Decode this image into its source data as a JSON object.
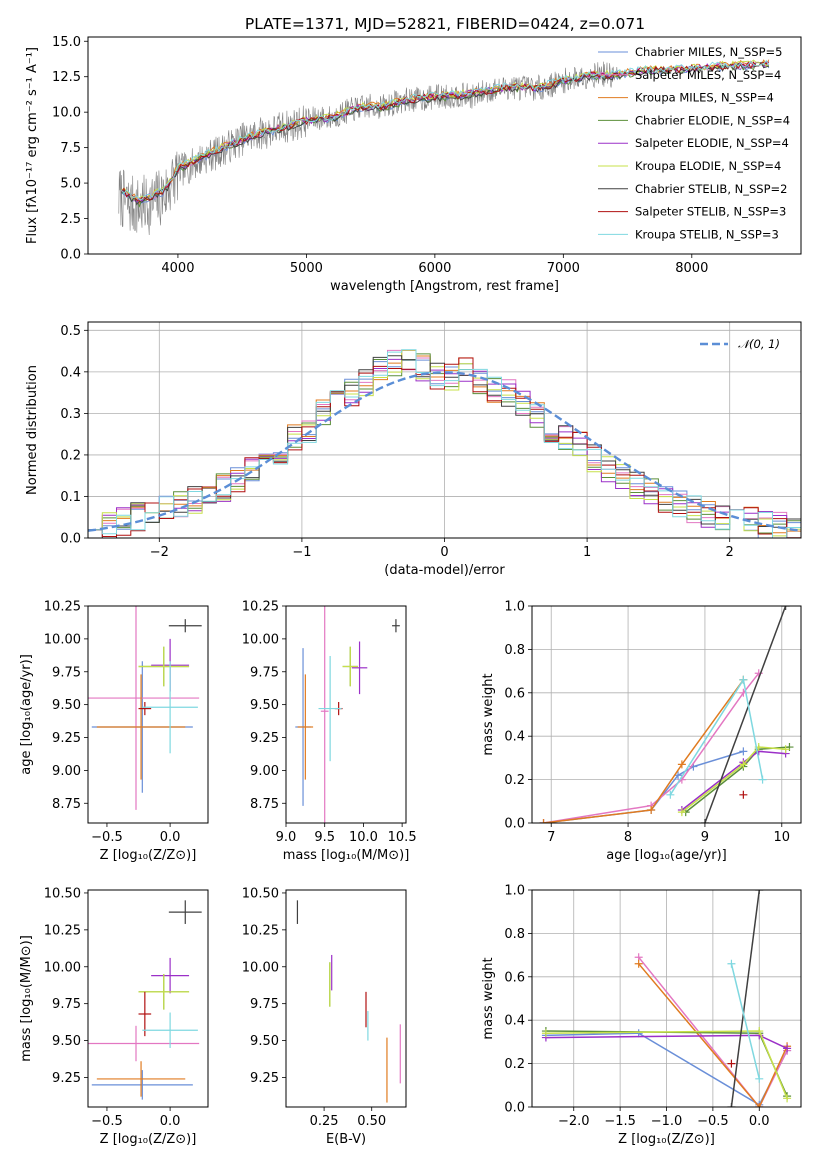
{
  "figure": {
    "title": "PLATE=1371, MJD=52821, FIBERID=0424, z=0.071"
  },
  "chart_data": [
    {
      "id": "spectrum",
      "type": "line",
      "xlabel": "wavelength [Angstrom, rest frame]",
      "ylabel": "Flux [fλ10⁻¹⁷ erg cm⁻² s⁻¹ A⁻¹]",
      "xlim": [
        3300,
        8850
      ],
      "ylim": [
        0,
        15.3
      ],
      "xticks": [
        "4000",
        "5000",
        "6000",
        "7000",
        "8000"
      ],
      "yticks": [
        "0.0",
        "2.5",
        "5.0",
        "7.5",
        "10.0",
        "12.5",
        "15.0"
      ],
      "data": {
        "color": "#808080",
        "wavelength": [
          3560,
          3600,
          3700,
          3800,
          3900,
          4000,
          4100,
          4200,
          4300,
          4400,
          4500,
          4600,
          4700,
          4800,
          4900,
          5000,
          5100,
          5200,
          5300,
          5400,
          5500,
          5600,
          5700,
          5800,
          5900,
          6000,
          6100,
          6200,
          6300,
          6400,
          6500,
          6600,
          6700,
          6800,
          6900,
          7000,
          7100,
          7200,
          7300,
          7400
        ],
        "flux": [
          4.0,
          3.5,
          3.3,
          3.6,
          4.2,
          5.8,
          6.2,
          6.8,
          7.1,
          7.6,
          8.1,
          8.4,
          8.6,
          8.9,
          9.1,
          9.4,
          9.6,
          9.6,
          10.0,
          10.3,
          10.4,
          10.4,
          10.7,
          10.9,
          10.9,
          11.1,
          11.1,
          11.2,
          11.1,
          11.5,
          11.6,
          11.8,
          11.7,
          11.7,
          11.9,
          12.2,
          12.4,
          12.6,
          12.7,
          12.5
        ]
      },
      "model_wavelength": [
        3560,
        3700,
        3900,
        4000,
        4200,
        4400,
        4600,
        4800,
        5000,
        5200,
        5400,
        5600,
        5800,
        6000,
        6200,
        6400,
        6600,
        6800,
        7000,
        7200,
        7400,
        7600,
        7800,
        8000,
        8200,
        8400,
        8600
      ],
      "model_flux": [
        4.5,
        3.7,
        4.5,
        6.0,
        6.9,
        7.7,
        8.4,
        8.9,
        9.4,
        9.6,
        10.3,
        10.4,
        10.9,
        11.1,
        11.2,
        11.5,
        11.8,
        11.7,
        12.2,
        12.6,
        12.6,
        12.9,
        13.0,
        13.1,
        13.2,
        13.3,
        13.4
      ],
      "series": [
        {
          "name": "Chabrier MILES, N_SSP=5",
          "color": "#6a8fd8"
        },
        {
          "name": "Salpeter MILES, N_SSP=4",
          "color": "#e377c2"
        },
        {
          "name": "Kroupa MILES, N_SSP=4",
          "color": "#e07b20"
        },
        {
          "name": "Chabrier ELODIE, N_SSP=4",
          "color": "#5b8f3a"
        },
        {
          "name": "Salpeter ELODIE, N_SSP=4",
          "color": "#9b30c8"
        },
        {
          "name": "Kroupa ELODIE, N_SSP=4",
          "color": "#c7e04a"
        },
        {
          "name": "Chabrier STELIB, N_SSP=2",
          "color": "#404040"
        },
        {
          "name": "Salpeter STELIB, N_SSP=3",
          "color": "#b01010"
        },
        {
          "name": "Kroupa STELIB, N_SSP=3",
          "color": "#7fd8e0"
        }
      ]
    },
    {
      "id": "residuals",
      "type": "line",
      "xlabel": "(data-model)/error",
      "ylabel": "Normed distribution",
      "xlim": [
        -2.5,
        2.5
      ],
      "ylim": [
        0,
        0.52
      ],
      "xticks": [
        "−2",
        "−1",
        "0",
        "1",
        "2"
      ],
      "yticks": [
        "0.0",
        "0.1",
        "0.2",
        "0.3",
        "0.4",
        "0.5"
      ],
      "gaussian_label": "𝒩(0, 1)",
      "gaussian_color": "#5b8ed6",
      "bin_centers": [
        -2.45,
        -2.35,
        -2.25,
        -2.15,
        -2.05,
        -1.95,
        -1.85,
        -1.75,
        -1.65,
        -1.55,
        -1.45,
        -1.35,
        -1.25,
        -1.15,
        -1.05,
        -0.95,
        -0.85,
        -0.75,
        -0.65,
        -0.55,
        -0.45,
        -0.35,
        -0.25,
        -0.15,
        -0.05,
        0.05,
        0.15,
        0.25,
        0.35,
        0.45,
        0.55,
        0.65,
        0.75,
        0.85,
        0.95,
        1.05,
        1.15,
        1.25,
        1.35,
        1.45,
        1.55,
        1.65,
        1.75,
        1.85,
        1.95,
        2.05,
        2.15,
        2.25,
        2.35,
        2.45
      ],
      "histogram": [
        0.03,
        0.03,
        0.04,
        0.05,
        0.05,
        0.07,
        0.08,
        0.09,
        0.11,
        0.12,
        0.14,
        0.16,
        0.19,
        0.21,
        0.24,
        0.26,
        0.3,
        0.32,
        0.35,
        0.37,
        0.4,
        0.42,
        0.43,
        0.41,
        0.39,
        0.39,
        0.4,
        0.38,
        0.36,
        0.35,
        0.32,
        0.3,
        0.26,
        0.24,
        0.22,
        0.19,
        0.17,
        0.15,
        0.13,
        0.11,
        0.09,
        0.08,
        0.07,
        0.06,
        0.05,
        0.04,
        0.04,
        0.03,
        0.03,
        0.02
      ]
    },
    {
      "id": "age-vs-Z",
      "type": "scatter",
      "xlabel": "Z [log₁₀(Z/Z⊙)]",
      "ylabel": "age  [log₁₀(age/yr)]",
      "xlim": [
        -0.65,
        0.3
      ],
      "ylim": [
        8.6,
        10.25
      ],
      "xticks": [
        "−0.5",
        "0.0"
      ],
      "yticks": [
        "8.75",
        "9.00",
        "9.25",
        "9.50",
        "9.75",
        "10.00",
        "10.25"
      ],
      "points": [
        {
          "x": -0.22,
          "y": 9.33,
          "xerr": 0.4,
          "yerr": 0.5,
          "color": "#6a8fd8"
        },
        {
          "x": -0.27,
          "y": 9.55,
          "xerr": 0.5,
          "yerr": 0.85,
          "color": "#e377c2"
        },
        {
          "x": -0.23,
          "y": 9.33,
          "xerr": 0.35,
          "yerr": 0.4,
          "color": "#e07b20"
        },
        {
          "x": -0.05,
          "y": 9.79,
          "xerr": 0.2,
          "yerr": 0.15,
          "color": "#5b8f3a"
        },
        {
          "x": 0.0,
          "y": 9.8,
          "xerr": 0.15,
          "yerr": 0.2,
          "color": "#9b30c8"
        },
        {
          "x": -0.05,
          "y": 9.79,
          "xerr": 0.2,
          "yerr": 0.15,
          "color": "#c7e04a"
        },
        {
          "x": 0.12,
          "y": 10.1,
          "xerr": 0.13,
          "yerr": 0.05,
          "color": "#404040"
        },
        {
          "x": -0.2,
          "y": 9.47,
          "xerr": 0.05,
          "yerr": 0.05,
          "color": "#b01010"
        },
        {
          "x": 0.0,
          "y": 9.48,
          "xerr": 0.22,
          "yerr": 0.35,
          "color": "#7fd8e0"
        }
      ]
    },
    {
      "id": "age-vs-mass",
      "type": "scatter",
      "xlabel": "mass [log₁₀(M/M⊙)]",
      "ylabel": "",
      "xlim": [
        9.0,
        10.55
      ],
      "ylim": [
        8.6,
        10.25
      ],
      "xticks": [
        "9.0",
        "9.5",
        "10.0",
        "10.5"
      ],
      "yticks": [
        "8.75",
        "9.00",
        "9.25",
        "9.50",
        "9.75",
        "10.00",
        "10.25"
      ],
      "points": [
        {
          "x": 9.22,
          "y": 9.33,
          "xerr": 0.1,
          "yerr": 0.6,
          "color": "#6a8fd8"
        },
        {
          "x": 9.5,
          "y": 9.45,
          "xerr": 0.05,
          "yerr": 0.95,
          "color": "#e377c2"
        },
        {
          "x": 9.25,
          "y": 9.33,
          "xerr": 0.1,
          "yerr": 0.4,
          "color": "#e07b20"
        },
        {
          "x": 9.83,
          "y": 9.79,
          "xerr": 0.1,
          "yerr": 0.15,
          "color": "#5b8f3a"
        },
        {
          "x": 9.95,
          "y": 9.78,
          "xerr": 0.1,
          "yerr": 0.2,
          "color": "#9b30c8"
        },
        {
          "x": 9.83,
          "y": 9.79,
          "xerr": 0.1,
          "yerr": 0.15,
          "color": "#c7e04a"
        },
        {
          "x": 10.42,
          "y": 10.1,
          "xerr": 0.05,
          "yerr": 0.05,
          "color": "#404040"
        },
        {
          "x": 9.68,
          "y": 9.47,
          "xerr": 0.05,
          "yerr": 0.05,
          "color": "#b01010"
        },
        {
          "x": 9.57,
          "y": 9.47,
          "xerr": 0.15,
          "yerr": 0.4,
          "color": "#7fd8e0"
        }
      ]
    },
    {
      "id": "massweight-vs-age",
      "type": "line",
      "xlabel": "age  [log₁₀(age/yr)]",
      "ylabel": "mass weight",
      "xlim": [
        6.75,
        10.25
      ],
      "ylim": [
        0,
        1.0
      ],
      "xticks": [
        "7",
        "8",
        "9",
        "10"
      ],
      "yticks": [
        "0.0",
        "0.2",
        "0.4",
        "0.6",
        "0.8",
        "1.0"
      ],
      "series": [
        {
          "color": "#6a8fd8",
          "x": [
            6.9,
            8.3,
            8.65,
            8.85,
            9.5
          ],
          "y": [
            0.0,
            0.06,
            0.22,
            0.26,
            0.33
          ]
        },
        {
          "color": "#e377c2",
          "x": [
            6.9,
            8.3,
            8.7,
            9.5,
            9.7
          ],
          "y": [
            0.0,
            0.08,
            0.2,
            0.6,
            0.69
          ]
        },
        {
          "color": "#e07b20",
          "x": [
            6.9,
            8.3,
            8.7,
            9.5
          ],
          "y": [
            0.0,
            0.06,
            0.27,
            0.66
          ]
        },
        {
          "color": "#5b8f3a",
          "x": [
            8.75,
            9.5,
            9.7,
            10.1
          ],
          "y": [
            0.05,
            0.26,
            0.34,
            0.35
          ]
        },
        {
          "color": "#9b30c8",
          "x": [
            8.7,
            9.5,
            9.7,
            10.05
          ],
          "y": [
            0.06,
            0.28,
            0.33,
            0.32
          ]
        },
        {
          "color": "#c7e04a",
          "x": [
            8.7,
            9.5,
            9.7,
            10.05
          ],
          "y": [
            0.05,
            0.27,
            0.35,
            0.34
          ]
        },
        {
          "color": "#404040",
          "x": [
            9.0,
            10.05
          ],
          "y": [
            0.0,
            1.0
          ]
        },
        {
          "color": "#b01010",
          "x": [
            9.5
          ],
          "y": [
            0.13
          ]
        },
        {
          "color": "#7fd8e0",
          "x": [
            8.55,
            9.5,
            9.75
          ],
          "y": [
            0.13,
            0.66,
            0.2
          ]
        }
      ]
    },
    {
      "id": "mass-vs-Z",
      "type": "scatter",
      "xlabel": "Z [log₁₀(Z/Z⊙)]",
      "ylabel": "mass [log₁₀(M/M⊙)]",
      "xlim": [
        -0.65,
        0.3
      ],
      "ylim": [
        9.05,
        10.52
      ],
      "xticks": [
        "−0.5",
        "0.0"
      ],
      "yticks": [
        "9.25",
        "9.50",
        "9.75",
        "10.00",
        "10.25",
        "10.50"
      ],
      "points": [
        {
          "x": -0.22,
          "y": 9.2,
          "xerr": 0.4,
          "yerr": 0.1,
          "color": "#6a8fd8"
        },
        {
          "x": -0.27,
          "y": 9.48,
          "xerr": 0.5,
          "yerr": 0.12,
          "color": "#e377c2"
        },
        {
          "x": -0.23,
          "y": 9.24,
          "xerr": 0.35,
          "yerr": 0.12,
          "color": "#e07b20"
        },
        {
          "x": -0.05,
          "y": 9.83,
          "xerr": 0.2,
          "yerr": 0.12,
          "color": "#5b8f3a"
        },
        {
          "x": 0.0,
          "y": 9.94,
          "xerr": 0.15,
          "yerr": 0.12,
          "color": "#9b30c8"
        },
        {
          "x": -0.05,
          "y": 9.83,
          "xerr": 0.2,
          "yerr": 0.12,
          "color": "#c7e04a"
        },
        {
          "x": 0.12,
          "y": 10.37,
          "xerr": 0.13,
          "yerr": 0.08,
          "color": "#404040"
        },
        {
          "x": -0.2,
          "y": 9.68,
          "xerr": 0.05,
          "yerr": 0.15,
          "color": "#b01010"
        },
        {
          "x": 0.0,
          "y": 9.57,
          "xerr": 0.22,
          "yerr": 0.12,
          "color": "#7fd8e0"
        }
      ]
    },
    {
      "id": "mass-vs-ebv",
      "type": "scatter",
      "xlabel": "E(B-V)",
      "ylabel": "",
      "xlim": [
        0.05,
        0.68
      ],
      "ylim": [
        9.05,
        10.52
      ],
      "xticks": [
        "0.25",
        "0.50"
      ],
      "yticks": [
        "9.25",
        "9.50",
        "9.75",
        "10.00",
        "10.25",
        "10.50"
      ],
      "points": [
        {
          "x": 0.28,
          "y": 9.88,
          "yerr": 0.15,
          "color": "#5b8f3a"
        },
        {
          "x": 0.29,
          "y": 9.96,
          "yerr": 0.12,
          "color": "#9b30c8"
        },
        {
          "x": 0.28,
          "y": 9.88,
          "yerr": 0.15,
          "color": "#c7e04a"
        },
        {
          "x": 0.11,
          "y": 10.37,
          "yerr": 0.08,
          "color": "#404040"
        },
        {
          "x": 0.47,
          "y": 9.71,
          "yerr": 0.12,
          "color": "#b01010"
        },
        {
          "x": 0.48,
          "y": 9.6,
          "yerr": 0.1,
          "color": "#7fd8e0"
        },
        {
          "x": 0.58,
          "y": 9.3,
          "yerr": 0.22,
          "color": "#e07b20"
        },
        {
          "x": 0.65,
          "y": 9.41,
          "yerr": 0.2,
          "color": "#e377c2"
        }
      ]
    },
    {
      "id": "massweight-vs-Z",
      "type": "line",
      "xlabel": "Z [log₁₀(Z/Z⊙)]",
      "ylabel": "mass weight",
      "xlim": [
        -2.45,
        0.45
      ],
      "ylim": [
        0,
        1.0
      ],
      "xticks": [
        "−2.0",
        "−1.5",
        "−1.0",
        "−0.5",
        "0.0"
      ],
      "yticks": [
        "0.0",
        "0.2",
        "0.4",
        "0.6",
        "0.8",
        "1.0"
      ],
      "series": [
        {
          "color": "#6a8fd8",
          "x": [
            -2.3,
            -1.3,
            0.0,
            0.3
          ],
          "y": [
            0.33,
            0.34,
            0.01,
            0.26
          ]
        },
        {
          "color": "#e377c2",
          "x": [
            -1.3,
            0.0,
            0.3
          ],
          "y": [
            0.69,
            0.0,
            0.26
          ]
        },
        {
          "color": "#e07b20",
          "x": [
            -1.3,
            0.0,
            0.3
          ],
          "y": [
            0.66,
            0.0,
            0.28
          ]
        },
        {
          "color": "#5b8f3a",
          "x": [
            -2.3,
            0.0,
            0.3
          ],
          "y": [
            0.35,
            0.34,
            0.05
          ]
        },
        {
          "color": "#9b30c8",
          "x": [
            -2.3,
            0.0,
            0.3
          ],
          "y": [
            0.32,
            0.33,
            0.27
          ]
        },
        {
          "color": "#c7e04a",
          "x": [
            -2.3,
            0.0,
            0.3
          ],
          "y": [
            0.34,
            0.35,
            0.04
          ]
        },
        {
          "color": "#404040",
          "x": [
            -0.3,
            0.0
          ],
          "y": [
            0.0,
            1.0
          ]
        },
        {
          "color": "#b01010",
          "x": [
            -0.3
          ],
          "y": [
            0.2
          ]
        },
        {
          "color": "#7fd8e0",
          "x": [
            -0.3,
            0.0
          ],
          "y": [
            0.66,
            0.13
          ]
        }
      ]
    }
  ]
}
